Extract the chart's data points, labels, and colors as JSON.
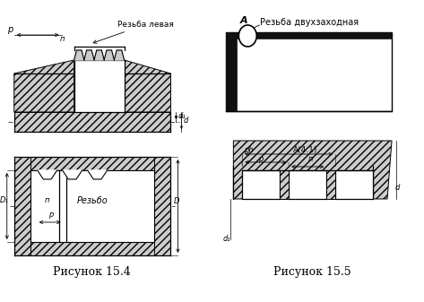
{
  "caption_left": "Рисунок 15.4",
  "caption_right": "Рисунок 15.5",
  "label_rezba_levaya": "Резьба левая",
  "label_rezba_dvuh": "Резьба двухзаходная",
  "label_rezbo": "Резьбо",
  "label_A": "А",
  "label_A_ratio": "А(4:1)",
  "label_p": "р",
  "label_n": "п",
  "label_ph": "рh",
  "bg_color": "#ffffff",
  "line_color": "#000000"
}
